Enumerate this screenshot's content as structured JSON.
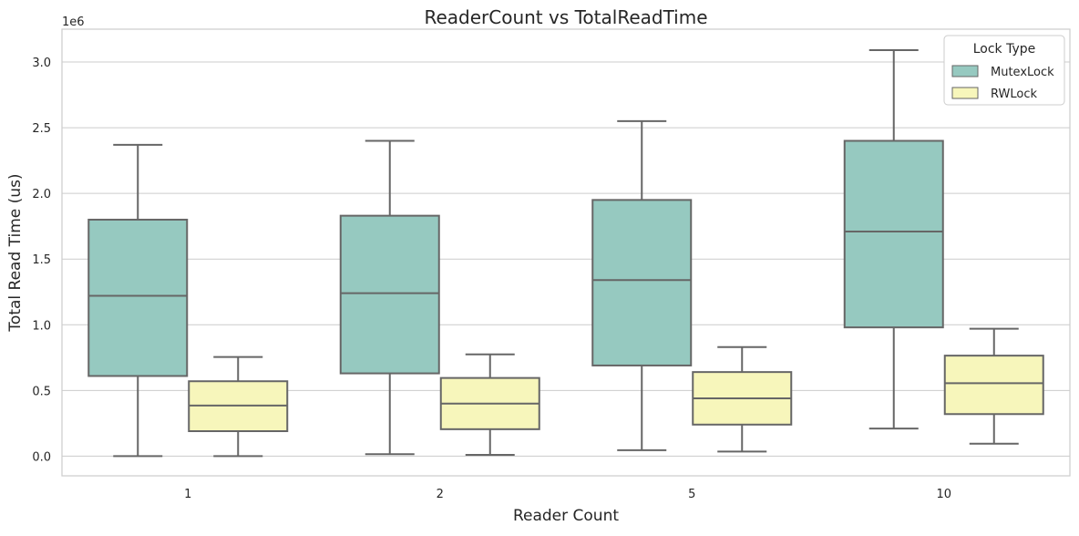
{
  "chart_data": {
    "type": "box",
    "title": "ReaderCount vs TotalReadTime",
    "xlabel": "Reader Count",
    "ylabel": "Total Read Time (us)",
    "y_offset_label": "1e6",
    "categories": [
      "1",
      "2",
      "5",
      "10"
    ],
    "ylim": [
      -0.15,
      3.25
    ],
    "yticks": [
      0.0,
      0.5,
      1.0,
      1.5,
      2.0,
      2.5,
      3.0
    ],
    "ytick_labels": [
      "0.0",
      "0.5",
      "1.0",
      "1.5",
      "2.0",
      "2.5",
      "3.0"
    ],
    "grid": "horizontal",
    "legend": {
      "title": "Lock Type",
      "placement": "top-right"
    },
    "series": [
      {
        "name": "MutexLock",
        "color": "#96c9c0",
        "boxes": [
          {
            "whisker_low": 0.0,
            "q1": 0.61,
            "median": 1.22,
            "q3": 1.8,
            "whisker_high": 2.37
          },
          {
            "whisker_low": 0.015,
            "q1": 0.63,
            "median": 1.24,
            "q3": 1.83,
            "whisker_high": 2.4
          },
          {
            "whisker_low": 0.045,
            "q1": 0.69,
            "median": 1.34,
            "q3": 1.95,
            "whisker_high": 2.55
          },
          {
            "whisker_low": 0.21,
            "q1": 0.98,
            "median": 1.71,
            "q3": 2.4,
            "whisker_high": 3.09
          }
        ]
      },
      {
        "name": "RWLock",
        "color": "#f7f6bb",
        "boxes": [
          {
            "whisker_low": 0.0,
            "q1": 0.19,
            "median": 0.385,
            "q3": 0.57,
            "whisker_high": 0.755
          },
          {
            "whisker_low": 0.01,
            "q1": 0.205,
            "median": 0.4,
            "q3": 0.595,
            "whisker_high": 0.775
          },
          {
            "whisker_low": 0.035,
            "q1": 0.24,
            "median": 0.44,
            "q3": 0.64,
            "whisker_high": 0.83
          },
          {
            "whisker_low": 0.095,
            "q1": 0.32,
            "median": 0.555,
            "q3": 0.765,
            "whisker_high": 0.97
          }
        ]
      }
    ],
    "colors": {
      "line": "#666666",
      "grid": "#cccccc",
      "frame": "#cccccc"
    }
  }
}
